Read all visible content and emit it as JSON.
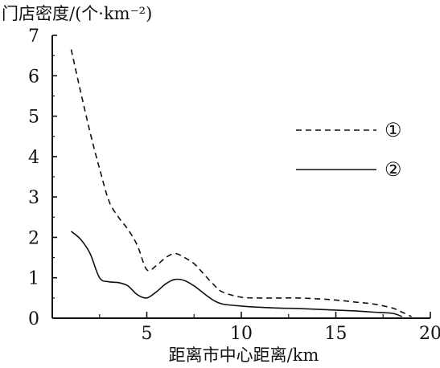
{
  "chart_data": {
    "type": "line",
    "ylabel": "门店密度/(个·km⁻²)",
    "xlabel": "距离市中心距离/km",
    "xlim": [
      0,
      20
    ],
    "ylim": [
      0,
      7
    ],
    "x_ticks": [
      0,
      5,
      10,
      15,
      20
    ],
    "y_ticks": [
      0,
      1,
      2,
      3,
      4,
      5,
      6,
      7
    ],
    "grid": false,
    "legend_position": "right-middle",
    "series": [
      {
        "name": "①",
        "line_style": "dashed",
        "color": "#111111",
        "x": [
          1.0,
          1.5,
          2.0,
          2.5,
          3.0,
          3.5,
          4.0,
          4.5,
          5.0,
          5.5,
          6.0,
          6.5,
          7.0,
          7.5,
          8.0,
          8.5,
          9.0,
          10.0,
          11.0,
          12.0,
          13.0,
          14.0,
          15.0,
          16.0,
          17.0,
          18.0,
          18.5,
          19.0
        ],
        "values": [
          6.65,
          5.6,
          4.6,
          3.7,
          2.9,
          2.5,
          2.2,
          1.8,
          1.2,
          1.3,
          1.5,
          1.6,
          1.5,
          1.35,
          1.1,
          0.85,
          0.65,
          0.52,
          0.5,
          0.5,
          0.5,
          0.48,
          0.45,
          0.4,
          0.35,
          0.25,
          0.15,
          0.04
        ]
      },
      {
        "name": "②",
        "line_style": "solid",
        "color": "#111111",
        "x": [
          1.0,
          1.5,
          2.0,
          2.5,
          3.0,
          3.5,
          4.0,
          4.5,
          5.0,
          5.5,
          6.0,
          6.5,
          7.0,
          7.5,
          8.0,
          8.5,
          9.0,
          10.0,
          11.0,
          12.0,
          13.0,
          14.0,
          15.0,
          16.0,
          17.0,
          18.0,
          18.5
        ],
        "values": [
          2.15,
          1.95,
          1.6,
          1.0,
          0.9,
          0.88,
          0.8,
          0.58,
          0.5,
          0.65,
          0.85,
          0.96,
          0.93,
          0.8,
          0.62,
          0.45,
          0.35,
          0.3,
          0.27,
          0.25,
          0.24,
          0.22,
          0.2,
          0.18,
          0.15,
          0.12,
          0.04
        ]
      }
    ]
  }
}
